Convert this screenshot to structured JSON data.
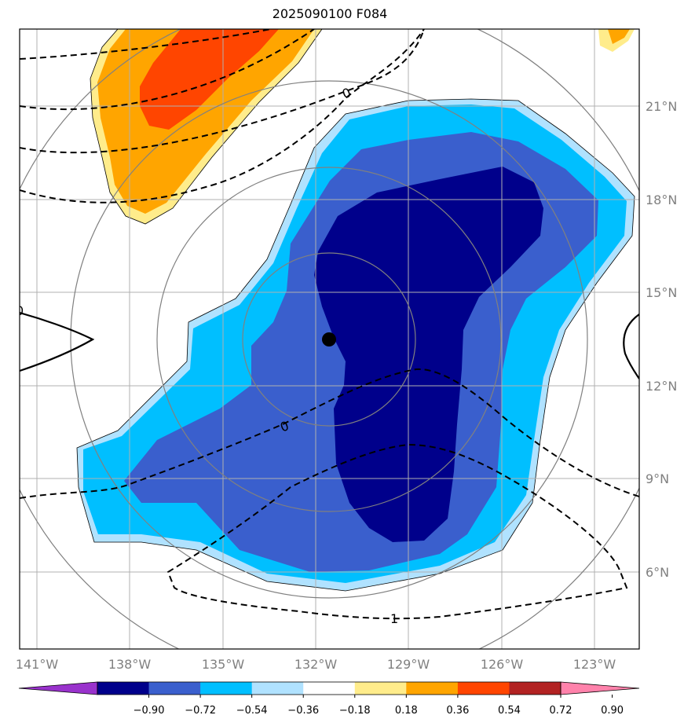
{
  "title": "2025090100 F084",
  "map": {
    "lon_ticks": [
      "141°W",
      "138°W",
      "135°W",
      "132°W",
      "129°W",
      "126°W",
      "123°W"
    ],
    "lat_ticks": [
      "21°N",
      "18°N",
      "15°N",
      "12°N",
      "9°N",
      "6°N"
    ],
    "contour_labels": [
      "0",
      "0",
      "0",
      "1"
    ],
    "center_marker": "storm-center"
  },
  "colorbar": {
    "labels": [
      "−0.90",
      "−0.72",
      "−0.54",
      "−0.36",
      "−0.18",
      "0.18",
      "0.36",
      "0.54",
      "0.72",
      "0.90"
    ],
    "colors": [
      "#9932CC",
      "#00008B",
      "#3A5FCD",
      "#00BFFF",
      "#B0E2FF",
      "#FFFFFF",
      "#FFEC8B",
      "#FFA500",
      "#FF4500",
      "#B22222",
      "#FF82AB"
    ]
  },
  "colors": {
    "darkblue": "#00008B",
    "royalblue": "#3A5FCD",
    "skyblue": "#00BFFF",
    "lightblue": "#B0E2FF",
    "lightyellow": "#FFEC8B",
    "orange": "#FFA500",
    "redorange": "#FF4500"
  }
}
